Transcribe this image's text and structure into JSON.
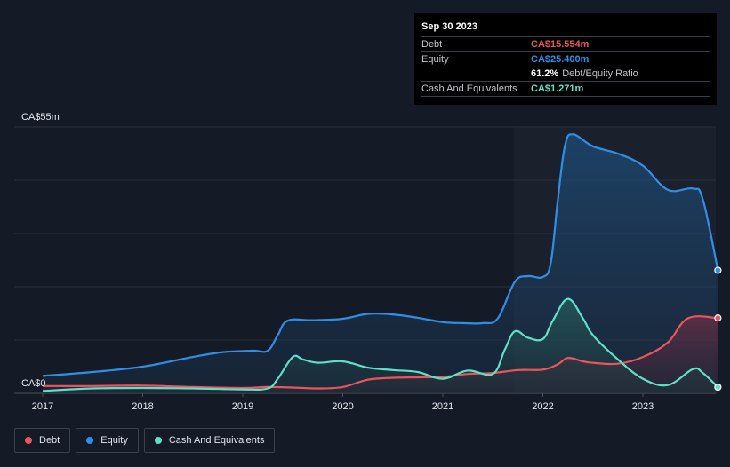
{
  "tooltip": {
    "date": "Sep 30 2023",
    "rows": [
      {
        "label": "Debt",
        "value": "CA$15.554m",
        "color": "#e8555d"
      },
      {
        "label": "Equity",
        "value": "CA$25.400m",
        "color": "#2f8fe6"
      },
      {
        "label": "",
        "value": "61.2%",
        "extra": "Debt/Equity Ratio",
        "color": "#ffffff"
      },
      {
        "label": "Cash And Equivalents",
        "value": "CA$1.271m",
        "color": "#5ee0c8"
      }
    ]
  },
  "legend": [
    {
      "label": "Debt",
      "color": "#e8555d"
    },
    {
      "label": "Equity",
      "color": "#2f8fe6"
    },
    {
      "label": "Cash And Equivalents",
      "color": "#5ee0c8"
    }
  ],
  "chart_data": {
    "type": "area",
    "y_top_label": "CA$55m",
    "y_zero_label": "CA$0",
    "ylim": [
      0,
      55
    ],
    "xlim": [
      2016.88,
      2023.76
    ],
    "x_ticks": [
      2017,
      2018,
      2019,
      2020,
      2021,
      2022,
      2023
    ],
    "x_tick_labels": [
      "2017",
      "2018",
      "2019",
      "2020",
      "2021",
      "2022",
      "2023"
    ],
    "grid": true,
    "series": [
      {
        "name": "Equity",
        "color": "#2f8fe6",
        "points": [
          [
            2017.0,
            3.6
          ],
          [
            2017.5,
            4.4
          ],
          [
            2018.0,
            5.5
          ],
          [
            2018.5,
            7.5
          ],
          [
            2018.8,
            8.5
          ],
          [
            2019.1,
            8.8
          ],
          [
            2019.25,
            8.8
          ],
          [
            2019.35,
            12.0
          ],
          [
            2019.45,
            15.0
          ],
          [
            2019.7,
            15.1
          ],
          [
            2020.0,
            15.4
          ],
          [
            2020.25,
            16.4
          ],
          [
            2020.5,
            16.3
          ],
          [
            2020.75,
            15.6
          ],
          [
            2021.0,
            14.7
          ],
          [
            2021.2,
            14.5
          ],
          [
            2021.4,
            14.5
          ],
          [
            2021.55,
            15.5
          ],
          [
            2021.72,
            23.0
          ],
          [
            2021.85,
            24.2
          ],
          [
            2022.0,
            24.0
          ],
          [
            2022.08,
            27.0
          ],
          [
            2022.15,
            40.0
          ],
          [
            2022.22,
            51.0
          ],
          [
            2022.3,
            53.5
          ],
          [
            2022.5,
            51.0
          ],
          [
            2022.75,
            49.5
          ],
          [
            2023.0,
            47.0
          ],
          [
            2023.25,
            42.0
          ],
          [
            2023.5,
            42.3
          ],
          [
            2023.6,
            40.0
          ],
          [
            2023.75,
            25.4
          ]
        ]
      },
      {
        "name": "Debt",
        "color": "#e8555d",
        "points": [
          [
            2017.0,
            1.5
          ],
          [
            2017.5,
            1.5
          ],
          [
            2018.0,
            1.6
          ],
          [
            2018.5,
            1.3
          ],
          [
            2019.0,
            1.1
          ],
          [
            2019.25,
            1.3
          ],
          [
            2019.5,
            1.2
          ],
          [
            2019.75,
            1.0
          ],
          [
            2020.0,
            1.3
          ],
          [
            2020.25,
            2.8
          ],
          [
            2020.5,
            3.2
          ],
          [
            2020.75,
            3.3
          ],
          [
            2021.0,
            3.4
          ],
          [
            2021.25,
            4.0
          ],
          [
            2021.5,
            4.2
          ],
          [
            2021.75,
            4.8
          ],
          [
            2022.0,
            4.9
          ],
          [
            2022.15,
            6.0
          ],
          [
            2022.25,
            7.3
          ],
          [
            2022.4,
            6.6
          ],
          [
            2022.5,
            6.3
          ],
          [
            2022.75,
            6.1
          ],
          [
            2023.0,
            7.5
          ],
          [
            2023.25,
            10.5
          ],
          [
            2023.45,
            15.5
          ],
          [
            2023.75,
            15.554
          ]
        ]
      },
      {
        "name": "Cash And Equivalents",
        "color": "#5ee0c8",
        "points": [
          [
            2017.0,
            0.5
          ],
          [
            2017.5,
            1.0
          ],
          [
            2018.0,
            1.1
          ],
          [
            2018.5,
            1.0
          ],
          [
            2019.0,
            0.8
          ],
          [
            2019.25,
            1.0
          ],
          [
            2019.35,
            3.0
          ],
          [
            2019.5,
            7.5
          ],
          [
            2019.6,
            7.0
          ],
          [
            2019.75,
            6.3
          ],
          [
            2020.0,
            6.6
          ],
          [
            2020.25,
            5.3
          ],
          [
            2020.5,
            4.8
          ],
          [
            2020.75,
            4.4
          ],
          [
            2021.0,
            3.0
          ],
          [
            2021.25,
            4.7
          ],
          [
            2021.5,
            4.0
          ],
          [
            2021.62,
            9.0
          ],
          [
            2021.72,
            12.8
          ],
          [
            2021.85,
            11.5
          ],
          [
            2022.0,
            11.2
          ],
          [
            2022.1,
            15.0
          ],
          [
            2022.25,
            19.5
          ],
          [
            2022.4,
            15.5
          ],
          [
            2022.5,
            12.0
          ],
          [
            2022.75,
            7.0
          ],
          [
            2023.0,
            3.0
          ],
          [
            2023.25,
            1.7
          ],
          [
            2023.5,
            5.0
          ],
          [
            2023.6,
            4.2
          ],
          [
            2023.75,
            1.271
          ]
        ]
      }
    ]
  }
}
